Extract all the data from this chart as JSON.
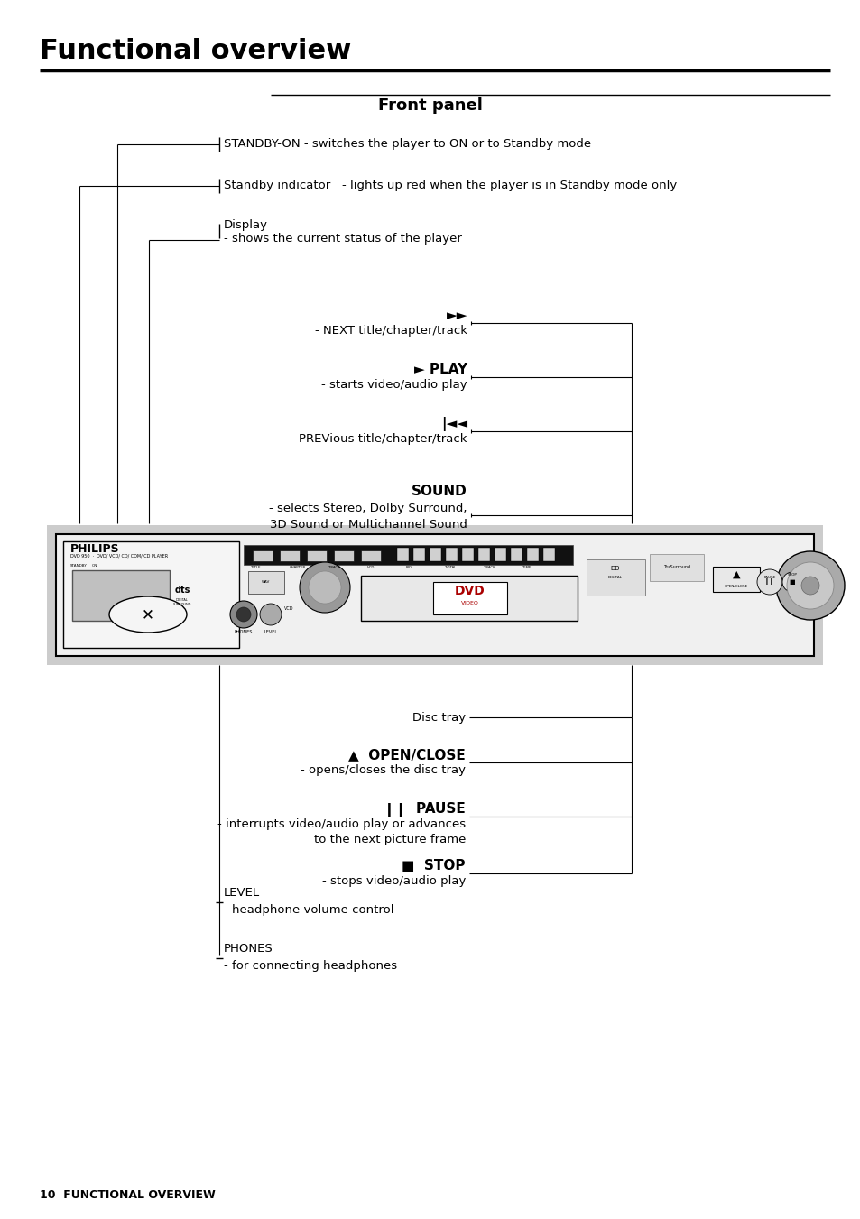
{
  "bg_color": "#ffffff",
  "title": "Functional overview",
  "subtitle": "Front panel",
  "footer": "10  FUNCTIONAL OVERVIEW",
  "panel_bg": "#cccccc",
  "device_bg": "#f0f0f0"
}
